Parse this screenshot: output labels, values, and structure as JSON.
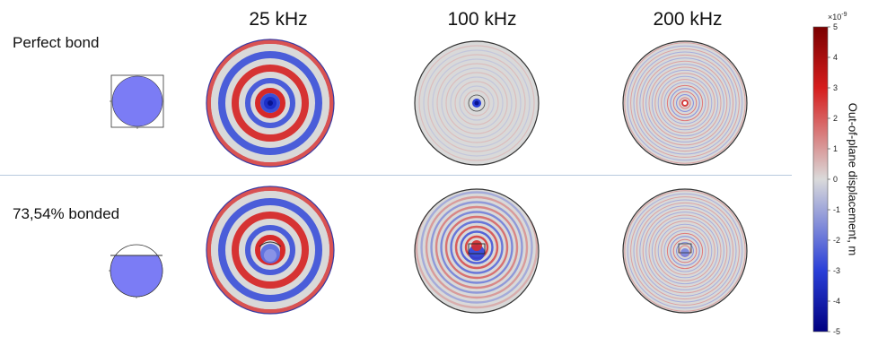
{
  "columns": [
    "25 kHz",
    "100 kHz",
    "200 kHz"
  ],
  "rows": [
    "Perfect bond",
    "73,54% bonded"
  ],
  "bonded_fraction": [
    1.0,
    0.7354
  ],
  "colorbar": {
    "title": "Out-of-plane displacement, m",
    "exponent": "×10",
    "exponent_power": "-9",
    "ticks": [
      "5",
      "4",
      "3",
      "2",
      "1",
      "0",
      "-1",
      "-2",
      "-3",
      "-4",
      "-5"
    ],
    "range": [
      -5,
      5
    ],
    "colors": {
      "max": "#7a0000",
      "high": "#e02020",
      "mid": "#dadada",
      "low": "#2a3fd8",
      "min": "#000080"
    }
  }
}
